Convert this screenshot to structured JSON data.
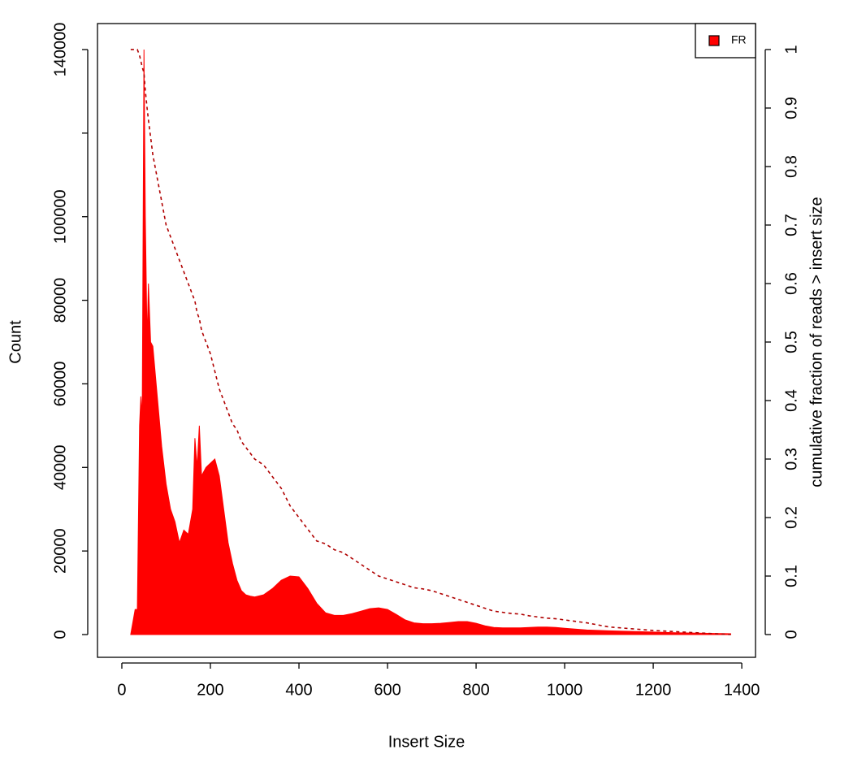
{
  "chart_data": {
    "type": "area",
    "xlabel": "Insert Size",
    "ylabel": "Count",
    "y2label": "cumulative fraction of reads > insert size",
    "x": [
      20,
      30,
      35,
      40,
      43,
      46,
      50,
      53,
      57,
      60,
      65,
      70,
      80,
      90,
      100,
      110,
      120,
      130,
      140,
      150,
      160,
      165,
      170,
      175,
      180,
      190,
      200,
      210,
      220,
      230,
      240,
      250,
      260,
      270,
      280,
      290,
      300,
      320,
      340,
      360,
      380,
      400,
      420,
      440,
      460,
      480,
      500,
      520,
      540,
      560,
      580,
      600,
      620,
      640,
      660,
      680,
      700,
      720,
      740,
      760,
      780,
      800,
      820,
      840,
      860,
      880,
      900,
      920,
      940,
      960,
      980,
      1000,
      1050,
      1100,
      1150,
      1200,
      1250,
      1300,
      1350,
      1375
    ],
    "series": [
      {
        "name": "FR",
        "color": "#ff0000",
        "values": [
          0,
          6000,
          6000,
          50000,
          57000,
          52000,
          140000,
          100000,
          70000,
          84000,
          70000,
          69000,
          57000,
          45000,
          36000,
          30000,
          27000,
          22000,
          25000,
          24000,
          30000,
          47000,
          40000,
          50000,
          38000,
          40000,
          41000,
          42000,
          38000,
          30000,
          22000,
          17000,
          13000,
          10500,
          9500,
          9200,
          9000,
          9500,
          11000,
          13000,
          14000,
          13800,
          11000,
          7500,
          5200,
          4600,
          4600,
          5000,
          5600,
          6200,
          6400,
          6000,
          4800,
          3500,
          2800,
          2600,
          2600,
          2700,
          2900,
          3100,
          3100,
          2700,
          2100,
          1700,
          1600,
          1600,
          1600,
          1700,
          1800,
          1800,
          1700,
          1500,
          1100,
          900,
          750,
          600,
          450,
          350,
          250,
          200
        ]
      },
      {
        "color": "#b00000",
        "axis": "y2",
        "dashed": true,
        "values": [
          1,
          1,
          1,
          0.99,
          0.98,
          0.97,
          0.96,
          0.93,
          0.9,
          0.88,
          0.85,
          0.82,
          0.78,
          0.74,
          0.7,
          0.68,
          0.66,
          0.64,
          0.62,
          0.6,
          0.58,
          0.57,
          0.55,
          0.54,
          0.52,
          0.5,
          0.48,
          0.45,
          0.42,
          0.4,
          0.38,
          0.36,
          0.35,
          0.33,
          0.32,
          0.31,
          0.3,
          0.29,
          0.27,
          0.25,
          0.22,
          0.2,
          0.18,
          0.16,
          0.155,
          0.145,
          0.14,
          0.13,
          0.12,
          0.11,
          0.1,
          0.095,
          0.09,
          0.085,
          0.08,
          0.078,
          0.075,
          0.07,
          0.065,
          0.06,
          0.055,
          0.05,
          0.045,
          0.04,
          0.038,
          0.036,
          0.035,
          0.032,
          0.03,
          0.028,
          0.027,
          0.025,
          0.02,
          0.013,
          0.01,
          0.007,
          0.005,
          0.003,
          0.001,
          0
        ]
      }
    ],
    "xlim": [
      -55,
      1431
    ],
    "xticks": [
      0,
      200,
      400,
      600,
      800,
      1000,
      1200,
      1400
    ],
    "ylim": [
      -5444,
      146222
    ],
    "yticks": [
      0,
      20000,
      40000,
      60000,
      80000,
      100000,
      {
        "value": 120000,
        "label": null
      },
      140000
    ],
    "y2lim": [
      -0.0389,
      1.0444
    ],
    "y2ticks": [
      0,
      0.1,
      0.2,
      0.3,
      0.4,
      0.5,
      0.6,
      0.7,
      0.8,
      0.9,
      1
    ],
    "legend": "top-right"
  }
}
